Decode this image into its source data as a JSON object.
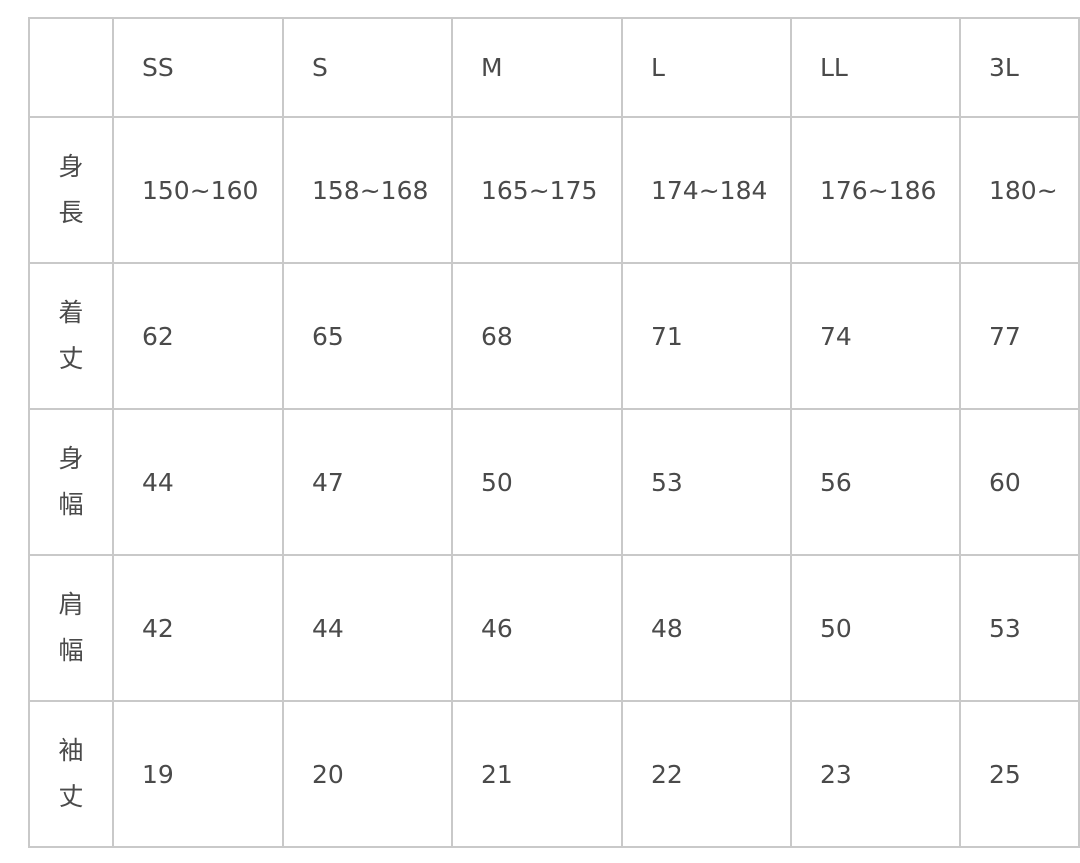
{
  "sizes": [
    "SS",
    "S",
    "M",
    "L",
    "LL",
    "3L"
  ],
  "rows": [
    {
      "label": [
        "身",
        "長"
      ],
      "values": [
        "150~160",
        "158~168",
        "165~175",
        "174~184",
        "176~186",
        "180~"
      ]
    },
    {
      "label": [
        "着",
        "丈"
      ],
      "values": [
        "62",
        "65",
        "68",
        "71",
        "74",
        "77"
      ]
    },
    {
      "label": [
        "身",
        "幅"
      ],
      "values": [
        "44",
        "47",
        "50",
        "53",
        "56",
        "60"
      ]
    },
    {
      "label": [
        "肩",
        "幅"
      ],
      "values": [
        "42",
        "44",
        "46",
        "48",
        "50",
        "53"
      ]
    },
    {
      "label": [
        "袖",
        "丈"
      ],
      "values": [
        "19",
        "20",
        "21",
        "22",
        "23",
        "25"
      ]
    }
  ]
}
